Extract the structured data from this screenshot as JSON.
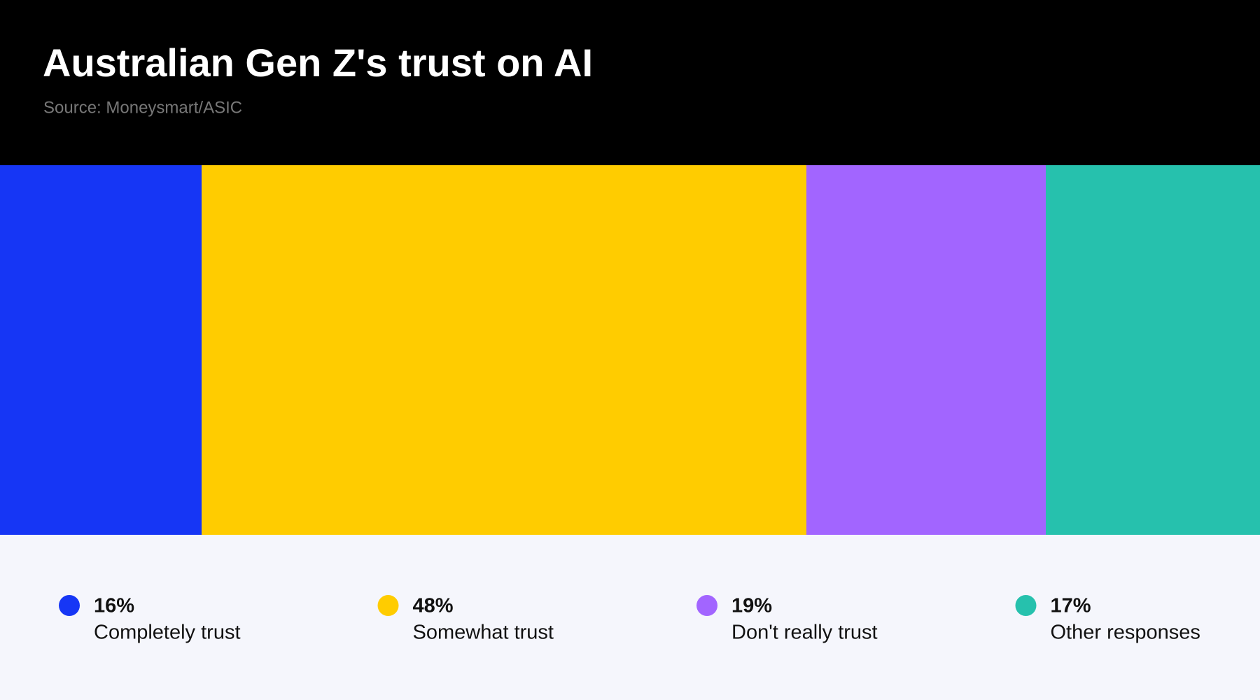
{
  "chart_data": {
    "type": "stacked_bar",
    "title": "Australian Gen Z's trust on AI",
    "subtitle": "Source: Moneysmart/ASIC",
    "categories": [
      "Completely trust",
      "Somewhat trust",
      "Don't really trust",
      "Other responses"
    ],
    "values": [
      16,
      48,
      19,
      17
    ],
    "value_labels": [
      "16%",
      "48%",
      "19%",
      "17%"
    ],
    "colors": [
      "#1636f5",
      "#ffcc00",
      "#a265ff",
      "#26c1ad"
    ]
  }
}
